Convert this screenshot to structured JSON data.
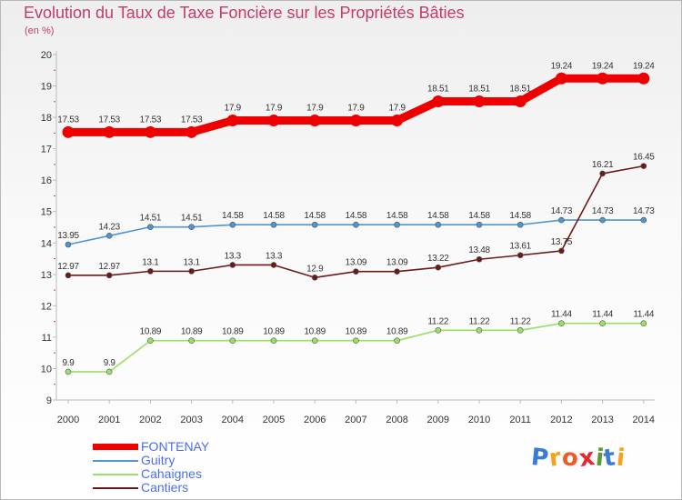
{
  "header": {
    "title": "Evolution du Taux de Taxe Foncière sur les Propriétés Bâties",
    "subtitle": "(en %)"
  },
  "logo": {
    "text": "Proxiti",
    "letters": [
      "P",
      "r",
      "o",
      "x",
      "i",
      "t",
      "i"
    ],
    "colors": [
      "#3a7bd5",
      "#f7a21b",
      "#f05a28",
      "#e8272f",
      "#5a9a2e",
      "#3a7bd5",
      "#f7a21b"
    ]
  },
  "chart_data": {
    "type": "line",
    "title": "Evolution du Taux de Taxe Foncière sur les Propriétés Bâties",
    "ylabel": "(en %)",
    "xlabel": "",
    "ylim": [
      9,
      20
    ],
    "yticks": [
      9,
      10,
      11,
      12,
      13,
      14,
      15,
      16,
      17,
      18,
      19,
      20
    ],
    "x": [
      "2000",
      "2001",
      "2002",
      "2003",
      "2004",
      "2005",
      "2006",
      "2007",
      "2008",
      "2009",
      "2010",
      "2011",
      "2012",
      "2013",
      "2014"
    ],
    "grid": false,
    "legend": "bottom-left",
    "series": [
      {
        "name": "FONTENAY",
        "color": "#ee0000",
        "values": [
          17.53,
          17.53,
          17.53,
          17.53,
          17.9,
          17.9,
          17.9,
          17.9,
          17.9,
          18.51,
          18.51,
          18.51,
          19.24,
          19.24,
          19.24
        ],
        "labels": [
          "17.53",
          "17.53",
          "17.53",
          "17.53",
          "17.9",
          "17.9",
          "17.9",
          "17.9",
          "17.9",
          "18.51",
          "18.51",
          "18.51",
          "19.24",
          "19.24",
          "19.24"
        ]
      },
      {
        "name": "Guitry",
        "color": "#4f95cf",
        "values": [
          13.95,
          14.23,
          14.51,
          14.51,
          14.58,
          14.58,
          14.58,
          14.58,
          14.58,
          14.58,
          14.58,
          14.58,
          14.73,
          14.73,
          14.73
        ],
        "labels": [
          "13.95",
          "14.23",
          "14.51",
          "14.51",
          "14.58",
          "14.58",
          "14.58",
          "14.58",
          "14.58",
          "14.58",
          "14.58",
          "14.58",
          "14.73",
          "14.73",
          "14.73"
        ]
      },
      {
        "name": "Cahaignes",
        "color": "#99e066",
        "values": [
          9.9,
          9.9,
          10.89,
          10.89,
          10.89,
          10.89,
          10.89,
          10.89,
          10.89,
          11.22,
          11.22,
          11.22,
          11.44,
          11.44,
          11.44
        ],
        "labels": [
          "9.9",
          "9.9",
          "10.89",
          "10.89",
          "10.89",
          "10.89",
          "10.89",
          "10.89",
          "10.89",
          "11.22",
          "11.22",
          "11.22",
          "11.44",
          "11.44",
          "11.44"
        ]
      },
      {
        "name": "Cantiers",
        "color": "#6b1a1a",
        "values": [
          12.97,
          12.97,
          13.1,
          13.1,
          13.3,
          13.3,
          12.9,
          13.09,
          13.09,
          13.22,
          13.48,
          13.61,
          13.75,
          16.21,
          16.45
        ],
        "labels": [
          "12.97",
          "12.97",
          "13.1",
          "13.1",
          "13.3",
          "13.3",
          "12.9",
          "13.09",
          "13.09",
          "13.22",
          "13.48",
          "13.61",
          "13.75",
          "16.21",
          "16.45"
        ]
      }
    ]
  }
}
